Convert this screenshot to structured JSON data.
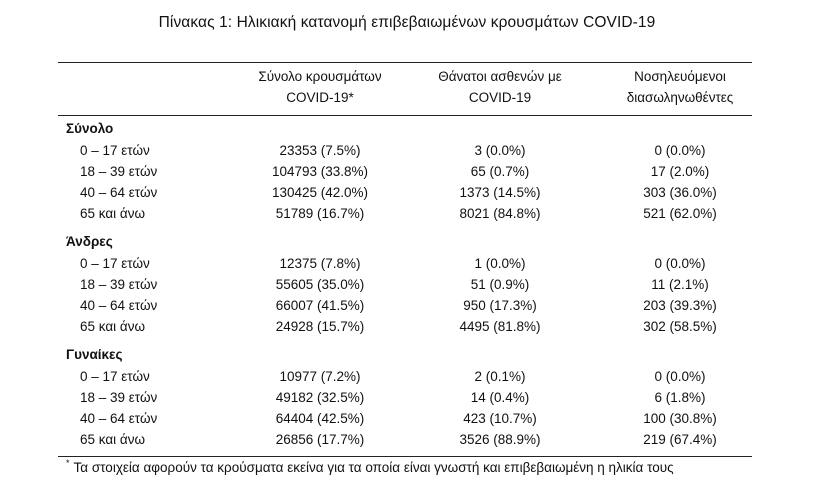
{
  "title": "Πίνακας 1: Ηλικιακή κατανομή επιβεβαιωμένων κρουσμάτων COVID-19",
  "headers": [
    "Σύνολο κρουσμάτων\nCOVID-19*",
    "Θάνατοι ασθενών με\nCOVID-19",
    "Νοσηλευόμενοι\nδιασωληνωθέντες"
  ],
  "groups": [
    {
      "label": "Σύνολο",
      "rows": [
        [
          "0 – 17 ετών",
          "23353 (7.5%)",
          "3 (0.0%)",
          "0 (0.0%)"
        ],
        [
          "18 – 39 ετών",
          "104793 (33.8%)",
          "65 (0.7%)",
          "17 (2.0%)"
        ],
        [
          "40 – 64 ετών",
          "130425 (42.0%)",
          "1373 (14.5%)",
          "303 (36.0%)"
        ],
        [
          "65 και άνω",
          "51789 (16.7%)",
          "8021 (84.8%)",
          "521 (62.0%)"
        ]
      ]
    },
    {
      "label": "Άνδρες",
      "rows": [
        [
          "0 – 17 ετών",
          "12375 (7.8%)",
          "1 (0.0%)",
          "0 (0.0%)"
        ],
        [
          "18 – 39 ετών",
          "55605 (35.0%)",
          "51 (0.9%)",
          "11 (2.1%)"
        ],
        [
          "40 – 64 ετών",
          "66007 (41.5%)",
          "950 (17.3%)",
          "203 (39.3%)"
        ],
        [
          "65 και άνω",
          "24928 (15.7%)",
          "4495 (81.8%)",
          "302 (58.5%)"
        ]
      ]
    },
    {
      "label": "Γυναίκες",
      "rows": [
        [
          "0 – 17 ετών",
          "10977 (7.2%)",
          "2 (0.1%)",
          "0 (0.0%)"
        ],
        [
          "18 – 39 ετών",
          "49182 (32.5%)",
          "14 (0.4%)",
          "6 (1.8%)"
        ],
        [
          "40 – 64 ετών",
          "64404 (42.5%)",
          "423 (10.7%)",
          "100 (30.8%)"
        ],
        [
          "65 και άνω",
          "26856 (17.7%)",
          "3526 (88.9%)",
          "219 (67.4%)"
        ]
      ]
    }
  ],
  "footnote": {
    "marker": "*",
    "text": "Τα στοιχεία αφορούν τα κρούσματα εκείνα για τα οποία είναι γνωστή και επιβεβαιωμένη η ηλικία τους"
  }
}
